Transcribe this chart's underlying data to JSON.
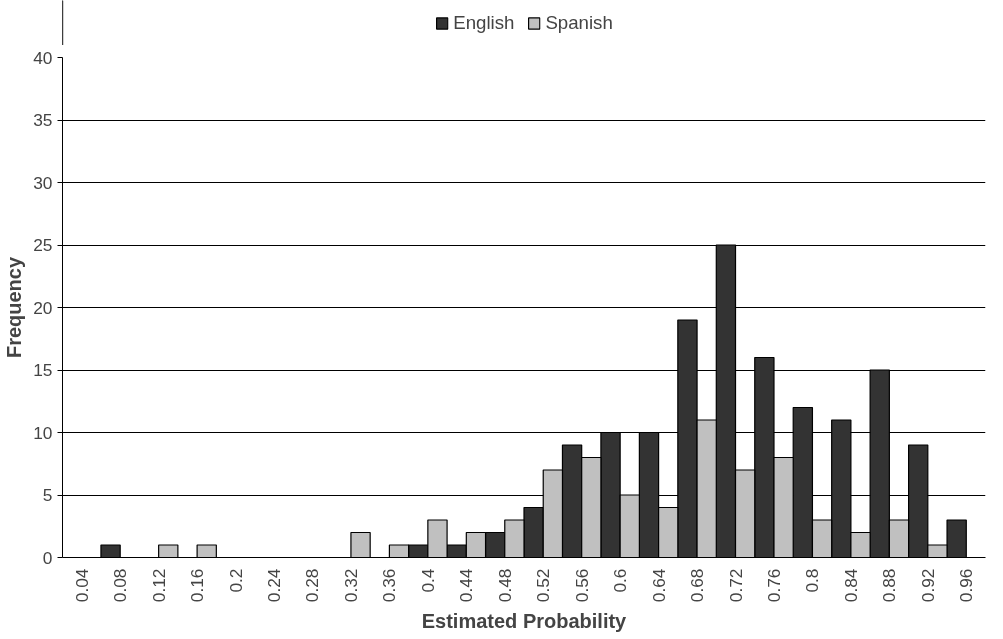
{
  "chart_data": {
    "type": "bar",
    "xlabel": "Estimated Probability",
    "ylabel": "Frequency",
    "categories": [
      "0.04",
      "0.08",
      "0.12",
      "0.16",
      "0.2",
      "0.24",
      "0.28",
      "0.32",
      "0.36",
      "0.4",
      "0.44",
      "0.48",
      "0.52",
      "0.56",
      "0.6",
      "0.64",
      "0.68",
      "0.72",
      "0.76",
      "0.8",
      "0.84",
      "0.88",
      "0.92",
      "0.96"
    ],
    "series": [
      {
        "name": "English",
        "color": "#333333",
        "values": [
          0,
          1,
          0,
          0,
          0,
          0,
          0,
          0,
          0,
          1,
          1,
          2,
          4,
          9,
          10,
          10,
          19,
          25,
          16,
          12,
          11,
          15,
          9,
          3
        ]
      },
      {
        "name": "Spanish",
        "color": "#c0c0c0",
        "values": [
          0,
          0,
          1,
          1,
          0,
          0,
          0,
          2,
          1,
          3,
          2,
          3,
          7,
          8,
          5,
          4,
          11,
          7,
          8,
          3,
          2,
          3,
          1,
          0
        ]
      }
    ],
    "ylim": [
      0,
      40
    ],
    "yticks": [
      0,
      5,
      10,
      15,
      20,
      25,
      30,
      35,
      40
    ],
    "grid": "y",
    "legend": "top"
  }
}
